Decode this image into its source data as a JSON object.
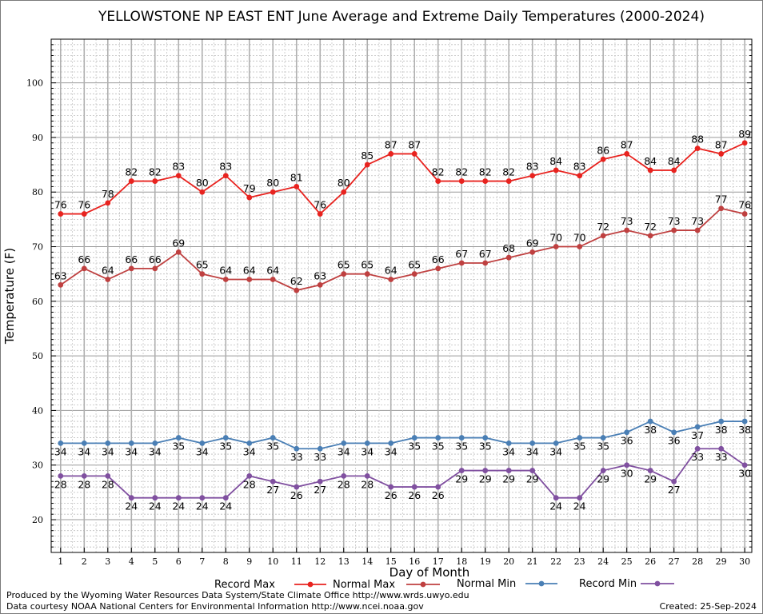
{
  "chart_data": {
    "type": "line",
    "title": "YELLOWSTONE NP EAST ENT June Average and Extreme Daily Temperatures (2000-2024)",
    "xlabel": "Day of Month",
    "ylabel": "Temperature (F)",
    "x": [
      1,
      2,
      3,
      4,
      5,
      6,
      7,
      8,
      9,
      10,
      11,
      12,
      13,
      14,
      15,
      16,
      17,
      18,
      19,
      20,
      21,
      22,
      23,
      24,
      25,
      26,
      27,
      28,
      29,
      30
    ],
    "xlim": [
      0.6,
      30.3
    ],
    "ylim": [
      14,
      108
    ],
    "y_ticks": [
      20,
      30,
      40,
      50,
      60,
      70,
      80,
      90,
      100
    ],
    "grid": true,
    "legend_position": "bottom",
    "series": [
      {
        "name": "Record Max",
        "color": "#e8231f",
        "values": [
          76,
          76,
          78,
          82,
          82,
          83,
          80,
          83,
          79,
          80,
          81,
          76,
          80,
          85,
          87,
          87,
          82,
          82,
          82,
          82,
          83,
          84,
          83,
          86,
          87,
          84,
          84,
          88,
          87,
          89
        ],
        "label_position": "above"
      },
      {
        "name": "Normal Max",
        "color": "#bf4040",
        "values": [
          63,
          66,
          64,
          66,
          66,
          69,
          65,
          64,
          64,
          64,
          62,
          63,
          65,
          65,
          64,
          65,
          66,
          67,
          67,
          68,
          69,
          70,
          70,
          72,
          73,
          72,
          73,
          73,
          77,
          76
        ],
        "label_position": "above"
      },
      {
        "name": "Normal Min",
        "color": "#4a7fb5",
        "values": [
          34,
          34,
          34,
          34,
          34,
          35,
          34,
          35,
          34,
          35,
          33,
          33,
          34,
          34,
          34,
          35,
          35,
          35,
          35,
          34,
          34,
          34,
          35,
          35,
          36,
          38,
          36,
          37,
          38,
          38
        ],
        "label_position": "below"
      },
      {
        "name": "Record Min",
        "color": "#8050a0",
        "values": [
          28,
          28,
          28,
          24,
          24,
          24,
          24,
          24,
          28,
          27,
          26,
          27,
          28,
          28,
          26,
          26,
          26,
          29,
          29,
          29,
          29,
          24,
          24,
          29,
          30,
          29,
          27,
          33,
          33,
          30
        ],
        "label_position": "below"
      }
    ]
  },
  "footer": {
    "line1": "Produced by the Wyoming Water Resources Data System/State Climate Office http://www.wrds.uwyo.edu",
    "line2": "Data courtesy NOAA National Centers for Environmental Information http://www.ncei.noaa.gov",
    "created": "Created:  25-Sep-2024"
  }
}
